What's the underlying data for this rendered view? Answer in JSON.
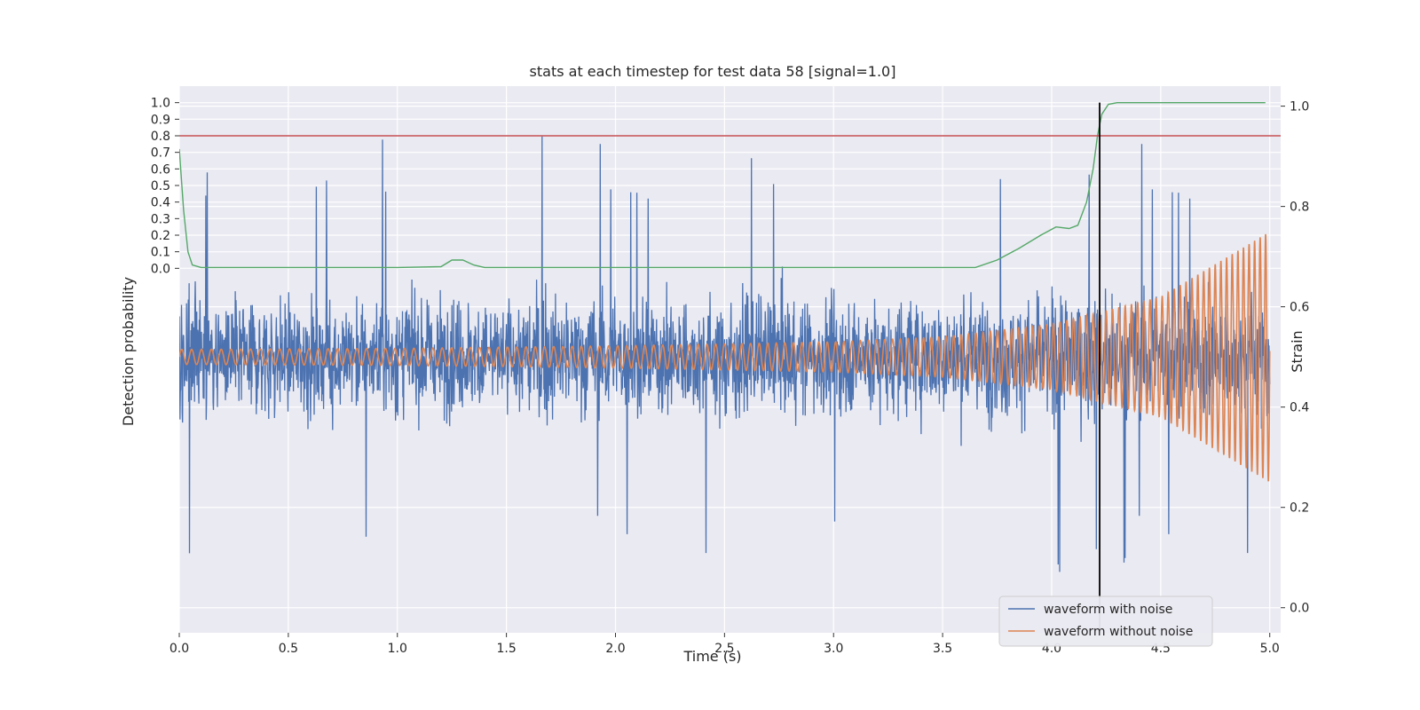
{
  "chart_data": {
    "type": "line",
    "title": "stats at each timestep for test data 58 [signal=1.0]",
    "xlabel": "Time (s)",
    "ylabel_left": "Detection probability",
    "ylabel_right": "Strain",
    "xlim": [
      0.0,
      5.05
    ],
    "ylim_left": [
      -2.2,
      1.1
    ],
    "ylim_right": [
      -0.05,
      1.04
    ],
    "x_ticks": [
      "0.0",
      "0.5",
      "1.0",
      "1.5",
      "2.0",
      "2.5",
      "3.0",
      "3.5",
      "4.0",
      "4.5",
      "5.0"
    ],
    "x_tick_values": [
      0.0,
      0.5,
      1.0,
      1.5,
      2.0,
      2.5,
      3.0,
      3.5,
      4.0,
      4.5,
      5.0
    ],
    "y_left_ticks": [
      "0.0",
      "0.1",
      "0.2",
      "0.3",
      "0.4",
      "0.5",
      "0.6",
      "0.7",
      "0.8",
      "0.9",
      "1.0"
    ],
    "y_left_tick_values": [
      0.0,
      0.1,
      0.2,
      0.3,
      0.4,
      0.5,
      0.6,
      0.7,
      0.8,
      0.9,
      1.0
    ],
    "y_right_ticks": [
      "0.0",
      "0.2",
      "0.4",
      "0.6",
      "0.8",
      "1.0"
    ],
    "y_right_tick_values": [
      0.0,
      0.2,
      0.4,
      0.6,
      0.8,
      1.0
    ],
    "threshold": 0.8,
    "detection_time": 4.22,
    "grid": true,
    "legend_position": "lower-right",
    "colors": {
      "noisy": "#4c72b0",
      "clean": "#dd8452",
      "probability": "#55a868",
      "threshold": "#c44e52",
      "detection": "#000000",
      "background": "#eaeaf2",
      "grid": "#ffffff"
    },
    "series": [
      {
        "name": "waveform with noise",
        "axis": "right",
        "center": 0.5,
        "amplitude_sd": 0.095,
        "noise_floor": 0.0,
        "max": 0.99
      },
      {
        "name": "waveform without noise",
        "axis": "right",
        "center": 0.5,
        "envelope": [
          [
            0.0,
            0.015
          ],
          [
            1.0,
            0.017
          ],
          [
            2.0,
            0.022
          ],
          [
            3.0,
            0.03
          ],
          [
            3.5,
            0.04
          ],
          [
            4.0,
            0.065
          ],
          [
            4.5,
            0.12
          ],
          [
            5.0,
            0.25
          ]
        ],
        "frequency_hz": [
          [
            0.0,
            22.0
          ],
          [
            2.0,
            24.0
          ],
          [
            3.0,
            26.0
          ],
          [
            4.0,
            32.0
          ],
          [
            5.0,
            40.0
          ]
        ]
      },
      {
        "name": "",
        "axis": "left",
        "points": [
          [
            0.0,
            0.72
          ],
          [
            0.02,
            0.35
          ],
          [
            0.04,
            0.1
          ],
          [
            0.06,
            0.02
          ],
          [
            0.1,
            0.005
          ],
          [
            1.0,
            0.005
          ],
          [
            1.2,
            0.01
          ],
          [
            1.25,
            0.05
          ],
          [
            1.3,
            0.05
          ],
          [
            1.35,
            0.02
          ],
          [
            1.4,
            0.005
          ],
          [
            3.65,
            0.005
          ],
          [
            3.75,
            0.05
          ],
          [
            3.85,
            0.12
          ],
          [
            3.95,
            0.2
          ],
          [
            4.02,
            0.25
          ],
          [
            4.08,
            0.24
          ],
          [
            4.12,
            0.26
          ],
          [
            4.16,
            0.4
          ],
          [
            4.19,
            0.6
          ],
          [
            4.21,
            0.8
          ],
          [
            4.23,
            0.93
          ],
          [
            4.26,
            0.99
          ],
          [
            4.3,
            1.0
          ],
          [
            4.98,
            1.0
          ]
        ]
      }
    ],
    "legend": [
      {
        "label": "waveform with noise",
        "color": "#4c72b0"
      },
      {
        "label": "waveform without noise",
        "color": "#dd8452"
      }
    ]
  }
}
